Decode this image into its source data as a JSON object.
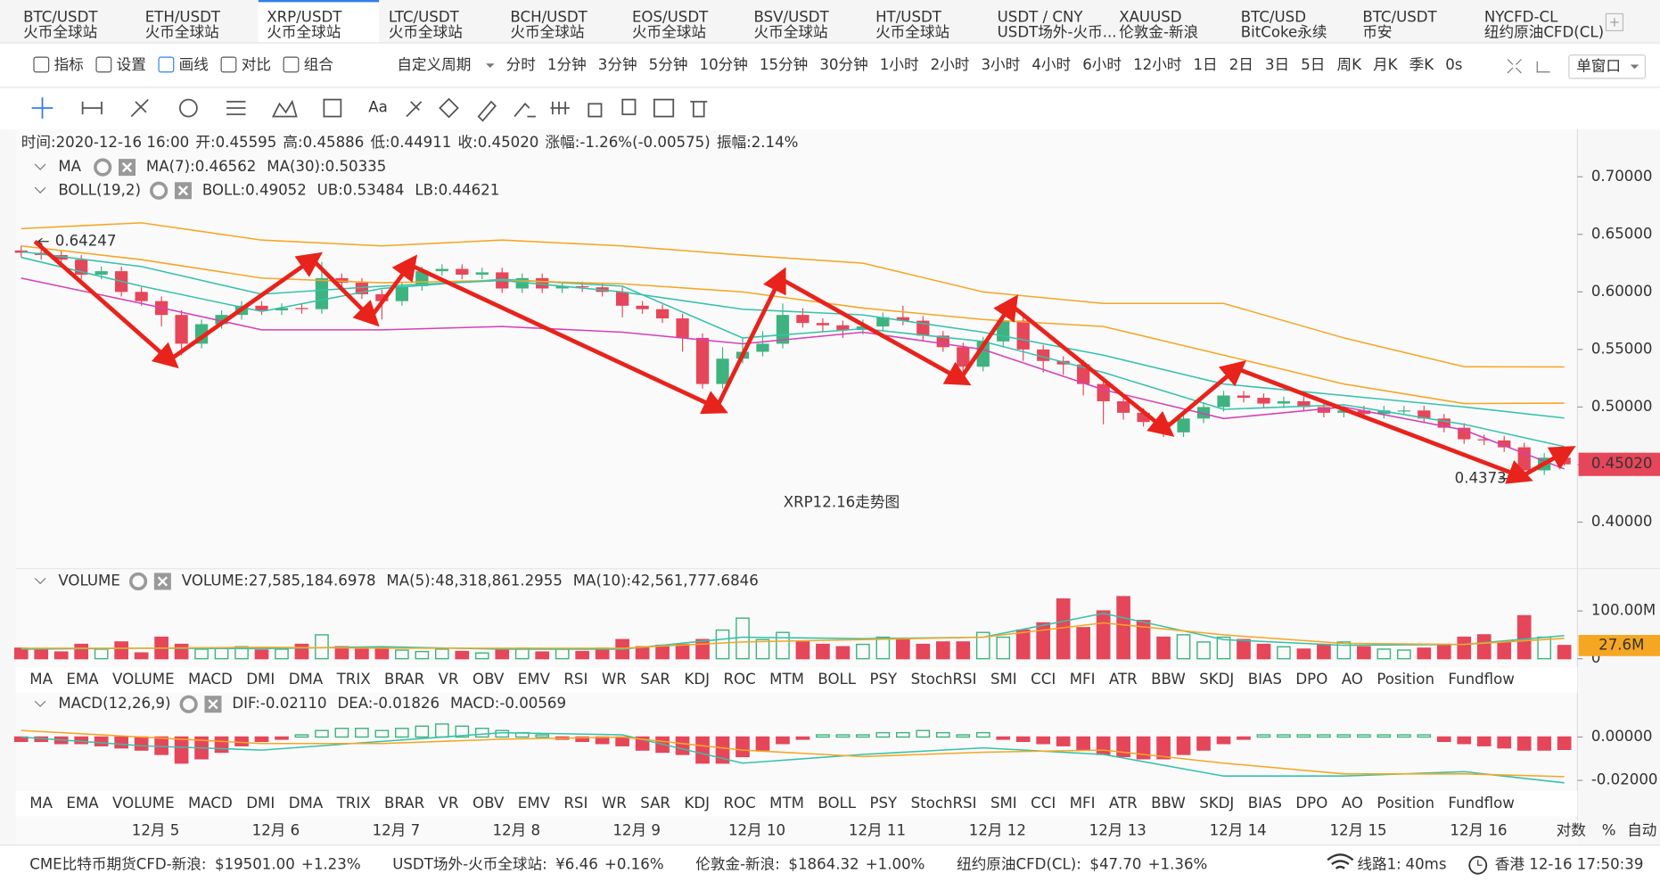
{
  "tabs": [
    {
      "name": "BTC/USDT",
      "source": "火币全球站"
    },
    {
      "name": "ETH/USDT",
      "source": "火币全球站"
    },
    {
      "name": "XRP/USDT",
      "source": "火币全球站"
    },
    {
      "name": "LTC/USDT",
      "source": "火币全球站"
    },
    {
      "name": "BCH/USDT",
      "source": "火币全球站"
    },
    {
      "name": "EOS/USDT",
      "source": "火币全球站"
    },
    {
      "name": "BSV/USDT",
      "source": "火币全球站"
    },
    {
      "name": "HT/USDT",
      "source": "火币全球站"
    },
    {
      "name": "USDT / CNY",
      "source": "USDT场外-火币..."
    },
    {
      "name": "XAUUSD",
      "source": "伦敦金-新浪"
    },
    {
      "name": "BTC/USD",
      "source": "BitCoke永续"
    },
    {
      "name": "BTC/USDT",
      "source": "币安"
    },
    {
      "name": "NYCFD-CL",
      "source": "纽约原油CFD(CL)"
    }
  ],
  "toolbar": {
    "items": [
      "指标",
      "设置",
      "画线",
      "对比",
      "组合"
    ],
    "period_label": "自定义周期",
    "periods": [
      "分时",
      "1分钟",
      "3分钟",
      "5分钟",
      "10分钟",
      "15分钟",
      "30分钟",
      "1小时",
      "2小时",
      "3小时",
      "4小时",
      "6小时",
      "12小时",
      "1日",
      "2日",
      "3日",
      "5日",
      "周K",
      "月K",
      "季K",
      "0s"
    ],
    "window": "单窗口"
  },
  "drawing_tools": {
    "text_tool": "Aa"
  },
  "info_bar": [
    {
      "label": "时间:",
      "value": "2020-12-16 16:00",
      "color": "#333333"
    },
    {
      "label": "开:",
      "value": "0.45595",
      "color": "#e5465a"
    },
    {
      "label": "高:",
      "value": "0.45886",
      "color": "#e5465a"
    },
    {
      "label": "低:",
      "value": "0.44911",
      "color": "#e5465a"
    },
    {
      "label": "收:",
      "value": "0.45020",
      "color": "#e5465a"
    },
    {
      "label": "涨幅:",
      "value": "-1.26%(-0.00575)",
      "color": "#e5465a"
    },
    {
      "label": "振幅:",
      "value": "2.14%",
      "color": "#e5465a"
    }
  ],
  "chart_data": [
    {
      "type": "candlestick",
      "title": "XRP12.16走势图",
      "up_color": "#3fb37f",
      "down_color": "#e5465a",
      "grid": false,
      "open": [
        0.636,
        0.634,
        0.632,
        0.628,
        0.615,
        0.618,
        0.6,
        0.592,
        0.58,
        0.555,
        0.572,
        0.58,
        0.588,
        0.584,
        0.586,
        0.585,
        0.612,
        0.608,
        0.598,
        0.592,
        0.605,
        0.618,
        0.62,
        0.615,
        0.617,
        0.603,
        0.612,
        0.603,
        0.605,
        0.604,
        0.6,
        0.588,
        0.585,
        0.577,
        0.56,
        0.52,
        0.542,
        0.548,
        0.555,
        0.58,
        0.573,
        0.571,
        0.567,
        0.57,
        0.578,
        0.575,
        0.562,
        0.552,
        0.535,
        0.557,
        0.575,
        0.55,
        0.54,
        0.537,
        0.52,
        0.505,
        0.495,
        0.487,
        0.478,
        0.49,
        0.5,
        0.51,
        0.508,
        0.503,
        0.505,
        0.5,
        0.495,
        0.497,
        0.494,
        0.497,
        0.497,
        0.49,
        0.482,
        0.472,
        0.471,
        0.465,
        0.445,
        0.45595
      ],
      "high": [
        0.64,
        0.64247,
        0.636,
        0.632,
        0.622,
        0.622,
        0.604,
        0.596,
        0.584,
        0.576,
        0.584,
        0.592,
        0.592,
        0.59,
        0.59,
        0.626,
        0.616,
        0.612,
        0.602,
        0.609,
        0.622,
        0.624,
        0.624,
        0.621,
        0.621,
        0.616,
        0.616,
        0.609,
        0.609,
        0.608,
        0.604,
        0.592,
        0.589,
        0.581,
        0.564,
        0.552,
        0.56,
        0.566,
        0.59,
        0.586,
        0.577,
        0.575,
        0.576,
        0.582,
        0.588,
        0.579,
        0.566,
        0.556,
        0.561,
        0.585,
        0.579,
        0.554,
        0.544,
        0.541,
        0.524,
        0.509,
        0.499,
        0.491,
        0.494,
        0.504,
        0.514,
        0.514,
        0.512,
        0.509,
        0.509,
        0.504,
        0.501,
        0.501,
        0.501,
        0.501,
        0.501,
        0.494,
        0.486,
        0.476,
        0.475,
        0.469,
        0.46,
        0.45886
      ],
      "low": [
        0.63,
        0.628,
        0.624,
        0.611,
        0.611,
        0.596,
        0.588,
        0.57,
        0.545,
        0.551,
        0.568,
        0.576,
        0.58,
        0.58,
        0.581,
        0.581,
        0.604,
        0.594,
        0.576,
        0.588,
        0.601,
        0.614,
        0.611,
        0.611,
        0.599,
        0.599,
        0.599,
        0.599,
        0.6,
        0.596,
        0.578,
        0.581,
        0.573,
        0.548,
        0.516,
        0.516,
        0.538,
        0.544,
        0.551,
        0.569,
        0.565,
        0.56,
        0.563,
        0.566,
        0.571,
        0.558,
        0.548,
        0.525,
        0.531,
        0.553,
        0.54,
        0.53,
        0.528,
        0.51,
        0.485,
        0.489,
        0.483,
        0.474,
        0.474,
        0.486,
        0.496,
        0.504,
        0.499,
        0.499,
        0.496,
        0.491,
        0.491,
        0.49,
        0.49,
        0.493,
        0.486,
        0.478,
        0.468,
        0.467,
        0.461,
        0.4373,
        0.441,
        0.44911
      ],
      "close": [
        0.634,
        0.632,
        0.628,
        0.615,
        0.618,
        0.6,
        0.592,
        0.58,
        0.555,
        0.572,
        0.58,
        0.588,
        0.584,
        0.586,
        0.585,
        0.612,
        0.608,
        0.598,
        0.592,
        0.605,
        0.618,
        0.62,
        0.615,
        0.617,
        0.603,
        0.612,
        0.603,
        0.605,
        0.604,
        0.6,
        0.588,
        0.585,
        0.577,
        0.56,
        0.52,
        0.542,
        0.548,
        0.555,
        0.58,
        0.573,
        0.571,
        0.567,
        0.57,
        0.578,
        0.575,
        0.562,
        0.552,
        0.535,
        0.557,
        0.575,
        0.55,
        0.54,
        0.537,
        0.52,
        0.505,
        0.495,
        0.487,
        0.478,
        0.49,
        0.5,
        0.51,
        0.508,
        0.503,
        0.505,
        0.5,
        0.495,
        0.497,
        0.494,
        0.497,
        0.497,
        0.49,
        0.482,
        0.472,
        0.471,
        0.465,
        0.445,
        0.456,
        0.4502
      ],
      "ylim": [
        0.3614,
        0.7248
      ],
      "yticks": [
        {
          "value": 0.7,
          "label": "0.70000"
        },
        {
          "value": 0.65,
          "label": "0.65000"
        },
        {
          "value": 0.6,
          "label": "0.60000"
        },
        {
          "value": 0.55,
          "label": "0.55000"
        },
        {
          "value": 0.5,
          "label": "0.50000"
        },
        {
          "value": 0.45,
          "label": "0.45000"
        },
        {
          "value": 0.4,
          "label": "0.40000"
        }
      ],
      "line_x": [
        0,
        6,
        12,
        18,
        24,
        30,
        36,
        42,
        48,
        54,
        60,
        66,
        72,
        77
      ],
      "groups": [
        {
          "label": "MA",
          "series": [
            {
              "name": "MA(7):0.46562",
              "color": "#35c2ab",
              "values": [
                0.63,
                0.605,
                0.583,
                0.603,
                0.611,
                0.605,
                0.56,
                0.568,
                0.557,
                0.53,
                0.498,
                0.502,
                0.485,
                0.46562
              ]
            },
            {
              "name": "MA(30):0.50335",
              "color": "#f5a623",
              "values": [
                0.64,
                0.628,
                0.612,
                0.608,
                0.61,
                0.607,
                0.6,
                0.586,
                0.576,
                0.57,
                0.545,
                0.52,
                0.503,
                0.50335
              ]
            }
          ]
        },
        {
          "label": "BOLL(19,2)",
          "series": [
            {
              "name": "BOLL:0.49052",
              "color": "#35c2ab",
              "values": [
                0.635,
                0.622,
                0.598,
                0.605,
                0.61,
                0.6,
                0.585,
                0.58,
                0.565,
                0.545,
                0.52,
                0.51,
                0.5,
                0.49052
              ]
            },
            {
              "name": "UB:0.53484",
              "color": "#f5a623",
              "values": [
                0.655,
                0.66,
                0.645,
                0.64,
                0.645,
                0.64,
                0.632,
                0.625,
                0.6,
                0.59,
                0.59,
                0.56,
                0.535,
                0.53484
              ]
            },
            {
              "name": "LB:0.44621",
              "color": "#d63fb8",
              "values": [
                0.612,
                0.59,
                0.567,
                0.567,
                0.57,
                0.565,
                0.555,
                0.565,
                0.55,
                0.515,
                0.49,
                0.5,
                0.48,
                0.44621
              ]
            }
          ]
        }
      ],
      "last_price_label": {
        "value": 0.4502,
        "label": "0.45020"
      },
      "max_label": 0.64247,
      "min_label": 0.4373
    },
    {
      "type": "bar",
      "title": "VOLUME",
      "header_text": "VOLUME:27,585,184.6978",
      "grid": false,
      "values": [
        22,
        18,
        14,
        30,
        20,
        35,
        12,
        45,
        30,
        20,
        22,
        25,
        18,
        20,
        30,
        50,
        25,
        20,
        25,
        18,
        15,
        20,
        15,
        12,
        18,
        22,
        14,
        20,
        15,
        22,
        40,
        25,
        28,
        30,
        40,
        60,
        85,
        40,
        55,
        35,
        30,
        25,
        30,
        45,
        40,
        30,
        35,
        35,
        55,
        45,
        60,
        75,
        125,
        65,
        100,
        130,
        80,
        45,
        50,
        35,
        45,
        40,
        30,
        25,
        20,
        30,
        35,
        25,
        20,
        18,
        22,
        30,
        45,
        50,
        35,
        90,
        45,
        27.6
      ],
      "ylim": [
        0,
        182
      ],
      "yticks": [
        {
          "value": 100,
          "label": "100.00M"
        },
        0
      ],
      "line_x": [
        0,
        6,
        12,
        18,
        24,
        30,
        36,
        42,
        48,
        54,
        60,
        66,
        72,
        77
      ],
      "series": [
        {
          "name": "MA(5):48,318,861.2955",
          "color": "#35c2ab",
          "values": [
            20,
            22,
            21,
            25,
            20,
            20,
            45,
            42,
            45,
            95,
            40,
            28,
            30,
            48.3
          ]
        },
        {
          "name": "MA(10):42,561,777.6846",
          "color": "#f5a623",
          "values": [
            22,
            22,
            24,
            22,
            22,
            22,
            35,
            40,
            45,
            75,
            50,
            32,
            30,
            42.6
          ]
        }
      ],
      "last_label": {
        "value": 27.6,
        "label": "27.6M"
      }
    },
    {
      "type": "bar",
      "title": "MACD(12,26,9)",
      "hist_label": "MACD:-0.00569",
      "hist_color": "#e5465a",
      "grid": false,
      "values": [
        -0.002,
        -0.002,
        -0.003,
        -0.003,
        -0.004,
        -0.005,
        -0.006,
        -0.008,
        -0.012,
        -0.01,
        -0.007,
        -0.004,
        -0.002,
        -0.001,
        0.001,
        0.003,
        0.004,
        0.004,
        0.003,
        0.004,
        0.005,
        0.006,
        0.005,
        0.004,
        0.003,
        0.002,
        0.001,
        -0.001,
        -0.002,
        -0.003,
        -0.004,
        -0.006,
        -0.007,
        -0.008,
        -0.012,
        -0.012,
        -0.009,
        -0.006,
        -0.003,
        -0.001,
        0.001,
        0.001,
        0.001,
        0.002,
        0.002,
        0.003,
        0.002,
        0.001,
        0.002,
        -0.001,
        -0.002,
        -0.003,
        -0.004,
        -0.006,
        -0.008,
        -0.009,
        -0.01,
        -0.01,
        -0.008,
        -0.006,
        -0.003,
        -0.001,
        0.001,
        0.001,
        0.001,
        0.001,
        0.001,
        0.001,
        0.001,
        0.001,
        0.001,
        -0.002,
        -0.003,
        -0.004,
        -0.005,
        -0.006,
        -0.006,
        -0.00569
      ],
      "ylim": [
        -0.0254,
        0.02
      ],
      "yticks": [
        {
          "value": 0,
          "label": "0.00000"
        },
        {
          "value": -0.02,
          "label": "-0.02000"
        }
      ],
      "line_x": [
        0,
        6,
        12,
        18,
        24,
        30,
        36,
        42,
        48,
        54,
        60,
        66,
        72,
        77
      ],
      "series": [
        {
          "name": "DIF:-0.02110",
          "color": "#35c2ab",
          "values": [
            0.0,
            -0.004,
            -0.006,
            -0.002,
            0.002,
            0.001,
            -0.012,
            -0.008,
            -0.005,
            -0.008,
            -0.018,
            -0.018,
            -0.016,
            -0.0211
          ]
        },
        {
          "name": "DEA:-0.01826",
          "color": "#f5a623",
          "values": [
            0.003,
            0.0,
            -0.003,
            -0.003,
            -0.001,
            0.0,
            -0.006,
            -0.009,
            -0.007,
            -0.006,
            -0.012,
            -0.017,
            -0.017,
            -0.01826
          ]
        }
      ]
    }
  ],
  "indicators": [
    "MA",
    "EMA",
    "VOLUME",
    "MACD",
    "DMI",
    "DMA",
    "TRIX",
    "BRAR",
    "VR",
    "OBV",
    "EMV",
    "RSI",
    "WR",
    "SAR",
    "KDJ",
    "ROC",
    "MTM",
    "BOLL",
    "PSY",
    "StochRSI",
    "SMI",
    "CCI",
    "MFI",
    "ATR",
    "BBW",
    "SKDJ",
    "BIAS",
    "DPO",
    "AO",
    "Position",
    "Fundflow"
  ],
  "date_labels": [
    "12月 5",
    "12月 6",
    "12月 7",
    "12月 8",
    "12月 9",
    "12月 10",
    "12月 11",
    "12月 12",
    "12月 13",
    "12月 14",
    "12月 15",
    "12月 16"
  ],
  "scale_options": [
    "对数",
    "%",
    "自动"
  ],
  "status_bar": {
    "markets": [
      {
        "name": "CME比特币期货CFD-新浪:",
        "price": "$19501.00",
        "change": "+1.23%"
      },
      {
        "name": "USDT场外-火币全球站:",
        "price": "¥6.46",
        "change": "+0.16%"
      },
      {
        "name": "伦敦金-新浪:",
        "price": "$1864.32",
        "change": "+1.00%"
      },
      {
        "name": "纽约原油CFD(CL):",
        "price": "$47.70",
        "change": "+1.36%"
      }
    ],
    "line_label": "线路1:",
    "latency": "40ms",
    "clock": "香港 12-16 17:50:39"
  }
}
